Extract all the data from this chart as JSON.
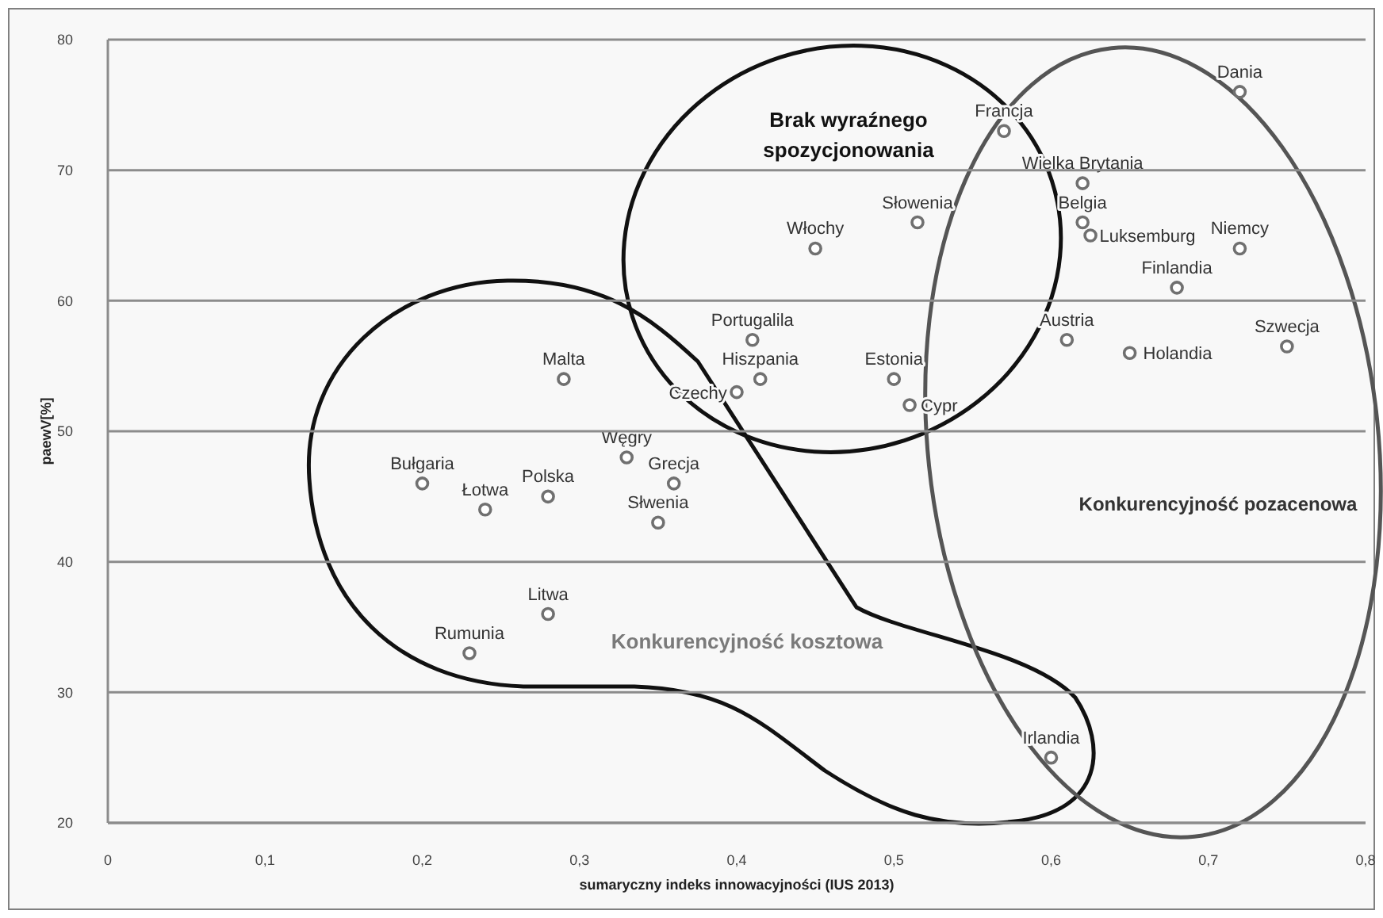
{
  "chart_data": {
    "type": "scatter",
    "xlabel": "sumaryczny indeks innowacyjności  (IUS 2013)",
    "ylabel": "paewV[%]",
    "x": [
      0.2,
      0.24,
      0.28,
      0.36,
      0.35,
      0.28,
      0.23,
      0.33,
      0.29,
      0.4,
      0.415,
      0.41,
      0.5,
      0.51,
      0.45,
      0.515,
      0.57,
      0.62,
      0.62,
      0.625,
      0.72,
      0.72,
      0.68,
      0.61,
      0.65,
      0.75,
      0.6
    ],
    "series": [
      {
        "color": "#707070",
        "values": [
          46,
          44,
          45,
          46,
          43,
          36,
          33,
          48,
          54,
          53,
          54,
          57,
          54,
          52,
          64,
          66,
          73,
          69,
          66,
          65,
          76,
          64,
          61,
          57,
          56,
          56.5,
          25
        ]
      }
    ],
    "xlim": [
      0,
      0.8
    ],
    "ylim": [
      20,
      80
    ],
    "xticks": [
      0,
      {
        "value": 0.1,
        "label": "0,1"
      },
      {
        "value": 0.2,
        "label": "0,2"
      },
      {
        "value": 0.3,
        "label": "0,3"
      },
      {
        "value": 0.4,
        "label": "0,4"
      },
      {
        "value": 0.5,
        "label": "0,5"
      },
      {
        "value": 0.6,
        "label": "0,6"
      },
      {
        "value": 0.7,
        "label": "0,7"
      },
      {
        "value": 0.8,
        "label": "0,8"
      }
    ],
    "yticks": [
      20,
      30,
      40,
      50,
      60,
      70,
      80
    ],
    "grid": "y",
    "marker": "circle",
    "legend": false,
    "annotations": [
      {
        "text": "Bułgaria",
        "x": 0.2,
        "y": 46
      },
      {
        "text": "Łotwa",
        "x": 0.24,
        "y": 44
      },
      {
        "text": "Polska",
        "x": 0.28,
        "y": 45
      },
      {
        "text": "Grecja",
        "x": 0.36,
        "y": 46
      },
      {
        "text": "Słwenia",
        "x": 0.35,
        "y": 43
      },
      {
        "text": "Litwa",
        "x": 0.28,
        "y": 36
      },
      {
        "text": "Rumunia",
        "x": 0.23,
        "y": 33
      },
      {
        "text": "Węgry",
        "x": 0.33,
        "y": 48
      },
      {
        "text": "Malta",
        "x": 0.29,
        "y": 54
      },
      {
        "text": "Czechy",
        "x": 0.4,
        "y": 53
      },
      {
        "text": "Hiszpania",
        "x": 0.415,
        "y": 54
      },
      {
        "text": "Portugalila",
        "x": 0.41,
        "y": 57
      },
      {
        "text": "Estonia",
        "x": 0.5,
        "y": 54
      },
      {
        "text": "Cypr",
        "x": 0.51,
        "y": 52
      },
      {
        "text": "Włochy",
        "x": 0.45,
        "y": 64
      },
      {
        "text": "Słowenia",
        "x": 0.515,
        "y": 66
      },
      {
        "text": "Francja",
        "x": 0.57,
        "y": 73
      },
      {
        "text": "Wielka Brytania",
        "x": 0.62,
        "y": 69
      },
      {
        "text": "Belgia",
        "x": 0.62,
        "y": 66
      },
      {
        "text": "Luksemburg",
        "x": 0.625,
        "y": 65
      },
      {
        "text": "Dania",
        "x": 0.72,
        "y": 76
      },
      {
        "text": "Niemcy",
        "x": 0.72,
        "y": 64
      },
      {
        "text": "Finlandia",
        "x": 0.68,
        "y": 61
      },
      {
        "text": "Austria",
        "x": 0.61,
        "y": 57
      },
      {
        "text": "Holandia",
        "x": 0.65,
        "y": 56
      },
      {
        "text": "Szwecja",
        "x": 0.75,
        "y": 56.5
      },
      {
        "text": "Irlandia",
        "x": 0.6,
        "y": 25
      },
      "Brak wyraźnego spozycjonowania",
      "Konkurencyjność kosztowa",
      "Konkurencyjność pozacenowa"
    ]
  }
}
